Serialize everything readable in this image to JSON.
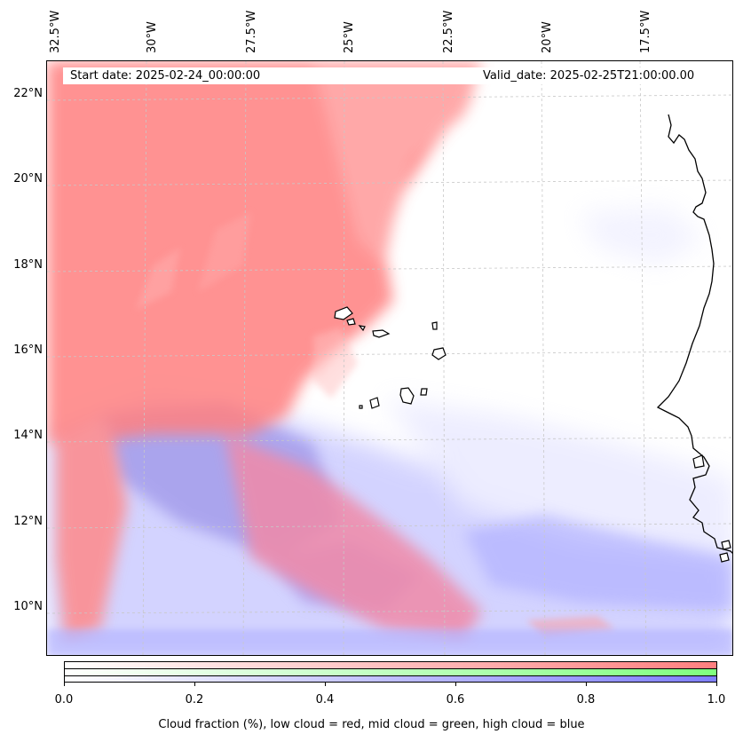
{
  "map": {
    "start_label": "Start date: 2025-02-24_00:00:00",
    "valid_label": "Valid_date: 2025-02-25T21:00:00.00",
    "longitude_labels": [
      "32.5°W",
      "30°W",
      "27.5°W",
      "25°W",
      "22.5°W",
      "20°W",
      "17.5°W"
    ],
    "latitude_labels": [
      "22°N",
      "20°N",
      "18°N",
      "16°N",
      "14°N",
      "12°N",
      "10°N"
    ],
    "colors": {
      "low_cloud": "#ff7f7f",
      "mid_cloud": "#7fff7f",
      "high_cloud": "#7f7fff",
      "coastline": "#000000",
      "gridline": "#c8c8c8"
    }
  },
  "colorbar": {
    "tick_labels": [
      "0.0",
      "0.2",
      "0.4",
      "0.6",
      "0.8",
      "1.0"
    ],
    "title": "Cloud fraction (%), low cloud = red, mid cloud = green, high cloud = blue",
    "bands": [
      "low cloud",
      "mid cloud",
      "high cloud"
    ]
  }
}
